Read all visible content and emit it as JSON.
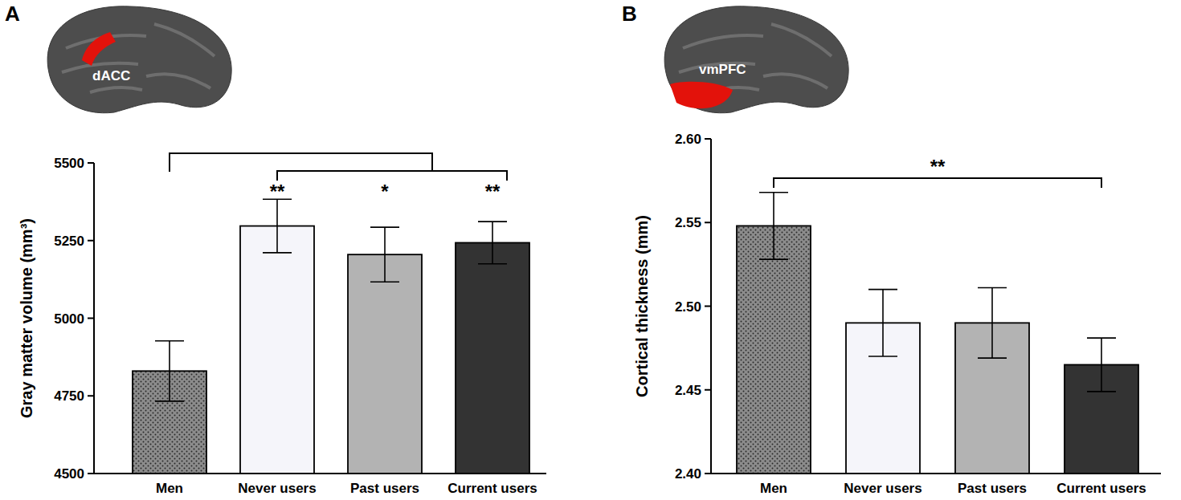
{
  "chart_data": [
    {
      "type": "bar",
      "panel": "A",
      "region": "dACC",
      "y_label": "Gray matter volume (mm³)",
      "categories": [
        "Men",
        "Never users",
        "Past users",
        "Current users"
      ],
      "values": [
        4830,
        5297,
        5205,
        5243
      ],
      "errors": [
        97,
        86,
        88,
        68
      ],
      "colors": [
        "#8c8c8c",
        "#f5f5fa",
        "#b3b3b3",
        "#333333"
      ],
      "ylim": [
        4500,
        5500
      ],
      "yticks": [
        4500,
        4750,
        5000,
        5250,
        5500
      ],
      "grid": false,
      "comparisons": [
        {
          "from": "Men",
          "to": [
            "Never users",
            "Past users",
            "Current users"
          ],
          "labels": [
            "**",
            "*",
            "**"
          ]
        }
      ]
    },
    {
      "type": "bar",
      "panel": "B",
      "region": "vmPFC",
      "y_label": "Cortical thickness (mm)",
      "categories": [
        "Men",
        "Never users",
        "Past users",
        "Current users"
      ],
      "values": [
        2.548,
        2.49,
        2.49,
        2.465
      ],
      "errors": [
        0.02,
        0.02,
        0.021,
        0.016
      ],
      "colors": [
        "#8c8c8c",
        "#f5f5fa",
        "#b3b3b3",
        "#333333"
      ],
      "ylim": [
        2.4,
        2.6
      ],
      "yticks": [
        {
          "value": 2.4,
          "label": "2.40"
        },
        2.45,
        {
          "value": 2.5,
          "label": "2.50"
        },
        2.55,
        {
          "value": 2.6,
          "label": "2.60"
        }
      ],
      "grid": false,
      "comparisons": [
        {
          "from": "Men",
          "to": [
            "Current users"
          ],
          "labels": [
            "**"
          ]
        }
      ]
    }
  ]
}
